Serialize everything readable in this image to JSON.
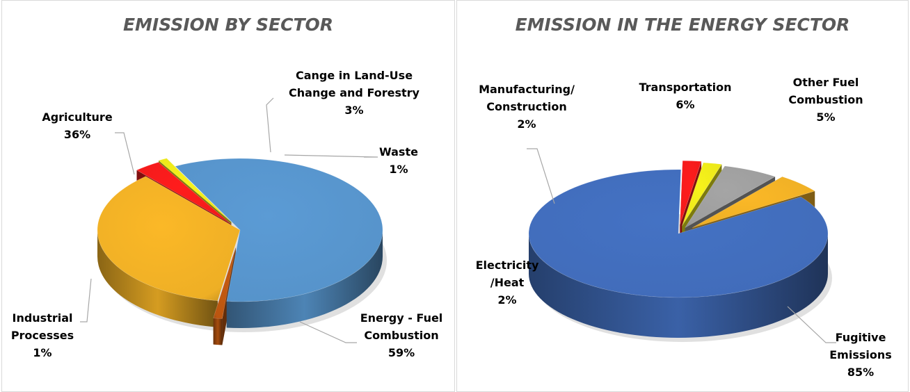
{
  "chart_data": [
    {
      "type": "pie",
      "title": "EMISSION BY SECTOR",
      "slices": [
        {
          "lines": [
            "Energy - Fuel",
            "Combustion"
          ],
          "value": 59,
          "value_label": "59%",
          "color": "#5b9bd5"
        },
        {
          "lines": [
            "Industrial",
            "Processes"
          ],
          "value": 1,
          "value_label": "1%",
          "color": "#c55a11"
        },
        {
          "lines": [
            "Agriculture"
          ],
          "value": 36,
          "value_label": "36%",
          "color": "#fbb827"
        },
        {
          "lines": [
            "Cange in Land-Use",
            "Change and Forestry"
          ],
          "value": 3,
          "value_label": "3%",
          "color": "#ff1c1c"
        },
        {
          "lines": [
            "Waste"
          ],
          "value": 1,
          "value_label": "1%",
          "color": "#f7f31b"
        }
      ]
    },
    {
      "type": "pie",
      "title": "EMISSION IN THE ENERGY SECTOR",
      "slices": [
        {
          "lines": [
            "Fugitive",
            "Emissions"
          ],
          "value": 85,
          "value_label": "85%",
          "color": "#4472c4"
        },
        {
          "lines": [
            "Electricity",
            "/Heat"
          ],
          "value": 2,
          "value_label": "2%",
          "color": "#ff1c1c"
        },
        {
          "lines": [
            "Manufacturing/",
            "Construction"
          ],
          "value": 2,
          "value_label": "2%",
          "color": "#f7f31b"
        },
        {
          "lines": [
            "Transportation"
          ],
          "value": 6,
          "value_label": "6%",
          "color": "#a5a5a5"
        },
        {
          "lines": [
            "Other Fuel",
            "Combustion"
          ],
          "value": 5,
          "value_label": "5%",
          "color": "#fbb827"
        }
      ]
    }
  ]
}
